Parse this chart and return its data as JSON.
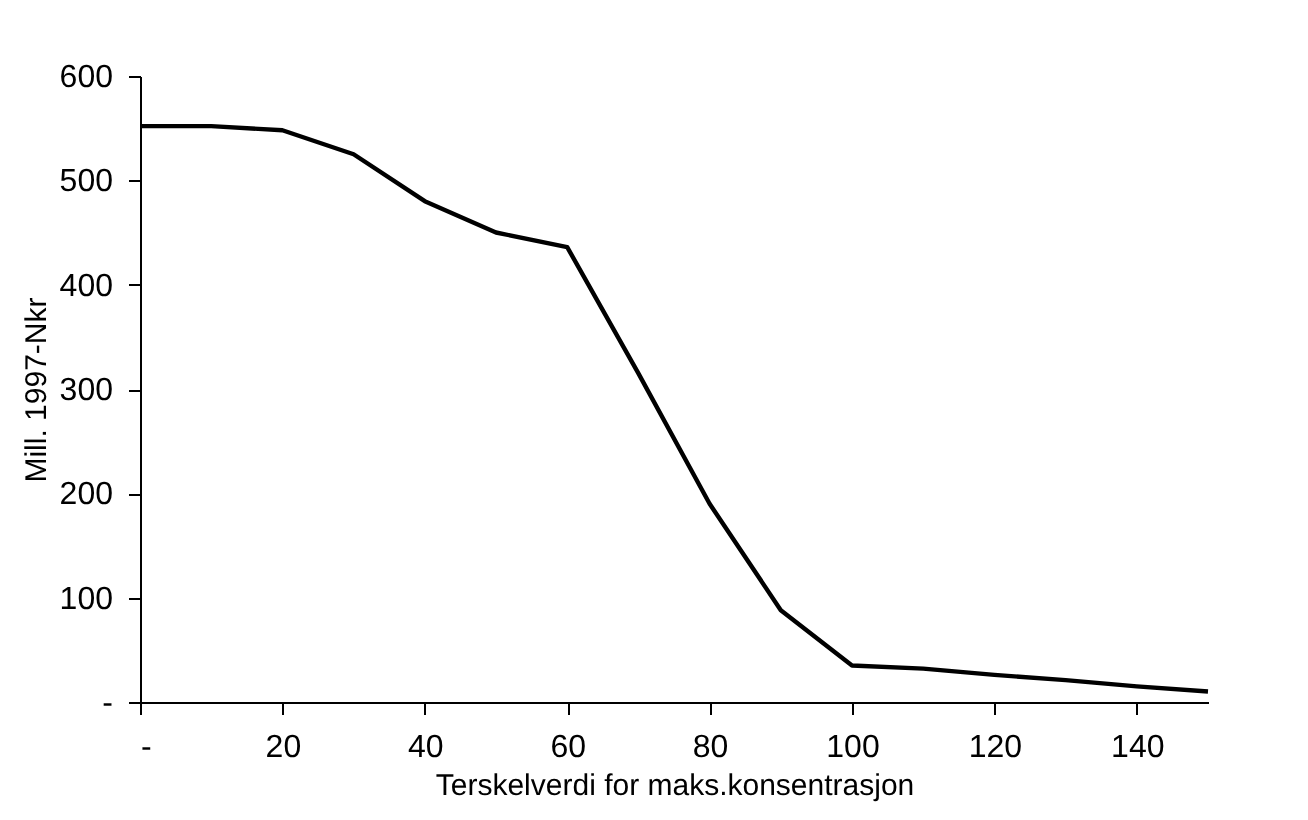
{
  "chart_data": {
    "type": "line",
    "xlabel": "Terskelverdi for maks.konsentrasjon",
    "ylabel": "Mill. 1997-Nkr",
    "x": [
      0,
      10,
      20,
      30,
      40,
      50,
      60,
      70,
      80,
      90,
      100,
      110,
      120,
      130,
      140,
      150
    ],
    "series": [
      {
        "color": "#000000",
        "values": [
          552,
          552,
          548,
          525,
          480,
          450,
          436,
          315,
          190,
          88,
          35,
          32,
          26,
          21,
          15,
          10
        ]
      }
    ],
    "xlim": [
      0,
      150
    ],
    "xticks": [
      {
        "value": 0,
        "label": "-"
      },
      20,
      40,
      60,
      80,
      100,
      120,
      140
    ],
    "ylim": [
      0,
      600
    ],
    "yticks": [
      {
        "value": 0,
        "label": "-"
      },
      100,
      200,
      300,
      400,
      500,
      600
    ],
    "grid": false,
    "marker": "none",
    "line_style": "solid"
  }
}
